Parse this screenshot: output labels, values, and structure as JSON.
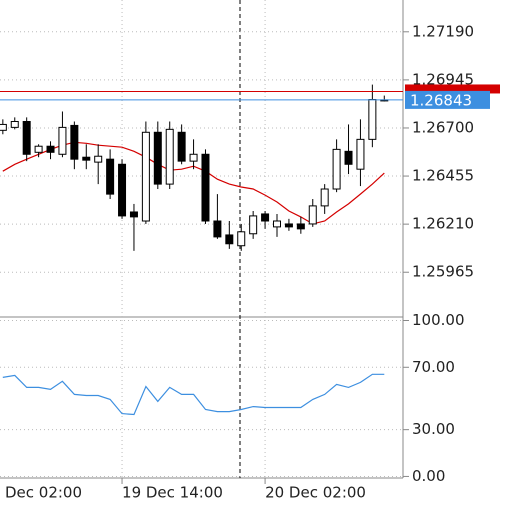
{
  "chart_data": [
    {
      "type": "candlestick",
      "categories": [
        "Dec 02:00",
        null,
        null,
        null,
        null,
        null,
        null,
        null,
        null,
        null,
        null,
        null,
        "19 Dec 14:00",
        null,
        null,
        null,
        null,
        null,
        null,
        null,
        null,
        null,
        null,
        null,
        "20 Dec 02:00",
        null,
        null,
        null,
        null,
        null,
        null,
        null,
        null,
        null,
        null
      ],
      "open": [
        null,
        null,
        1.26688,
        1.26703,
        1.26733,
        1.26576,
        1.26607,
        1.26566,
        1.26713,
        1.26551,
        1.26526,
        1.26541,
        1.26515,
        1.26272,
        1.26226,
        1.26678,
        1.26414,
        1.26678,
        1.26531,
        1.26566,
        1.26226,
        1.26155,
        1.261,
        1.26161,
        1.26262,
        1.26196,
        1.26211,
        1.26211,
        1.26211,
        1.26303,
        1.26389,
        1.26581,
        1.2649,
        1.26642,
        1.2684
      ],
      "high": [
        null,
        null,
        1.26744,
        1.26754,
        1.26754,
        1.26617,
        1.26632,
        1.26784,
        1.26733,
        1.26617,
        1.26617,
        1.26591,
        1.26541,
        1.26313,
        1.26733,
        1.26733,
        1.26733,
        1.26718,
        1.26642,
        1.26591,
        1.26363,
        1.26226,
        1.26211,
        1.26277,
        1.26277,
        1.26262,
        1.26237,
        1.26247,
        1.26338,
        1.26414,
        1.26642,
        1.26718,
        1.26744,
        1.26921,
        1.26865
      ],
      "low": [
        null,
        null,
        1.26668,
        1.26693,
        1.26531,
        1.26551,
        1.26541,
        1.26551,
        1.2649,
        1.2649,
        1.26414,
        1.26338,
        1.26237,
        1.26074,
        1.26211,
        1.26389,
        1.26389,
        1.26515,
        1.2649,
        1.26211,
        1.26135,
        1.26084,
        1.26074,
        1.26135,
        1.26186,
        1.26145,
        1.26176,
        1.26161,
        1.26196,
        1.26262,
        1.26373,
        1.26465,
        1.26404,
        1.26602,
        1.26835
      ],
      "close": [
        null,
        null,
        1.26718,
        1.26733,
        1.26566,
        1.26607,
        1.26576,
        1.26703,
        1.26541,
        1.26536,
        1.26556,
        1.26363,
        1.26252,
        1.26247,
        1.26678,
        1.26414,
        1.26693,
        1.26531,
        1.26566,
        1.26226,
        1.26145,
        1.2611,
        1.26171,
        1.26252,
        1.26226,
        1.26226,
        1.26196,
        1.26186,
        1.26303,
        1.26389,
        1.26591,
        1.26515,
        1.26642,
        1.26845,
        1.26843
      ],
      "up_color": "#ffffff",
      "down_color": "#000000",
      "ma": {
        "color": "#d40000",
        "values": [
          null,
          null,
          1.2648,
          1.26515,
          1.26541,
          1.26566,
          1.26591,
          1.26612,
          1.26627,
          1.26622,
          1.26612,
          1.26607,
          1.26602,
          1.26581,
          1.26551,
          1.26515,
          1.26485,
          1.2649,
          1.26505,
          1.2648,
          1.26439,
          1.26414,
          1.26399,
          1.26389,
          1.26358,
          1.26323,
          1.26277,
          1.26247,
          1.26211,
          1.26226,
          1.26272,
          1.26313,
          1.26363,
          1.26414,
          1.2647
        ]
      },
      "bid": 1.26843,
      "bid_color": "#3d8fe0",
      "ask": 1.26886,
      "ask_color": "#d40000",
      "ylim": [
        1.25742,
        1.27352
      ],
      "yticks": [
        {
          "value": 1.2719,
          "label": "1.27190"
        },
        1.26945,
        {
          "value": 1.267,
          "label": "1.26700"
        },
        1.26455,
        {
          "value": 1.2621,
          "label": "1.26210"
        },
        1.25965
      ],
      "grid": true
    },
    {
      "type": "line",
      "series": [
        {
          "color": "#3d8fe0",
          "values": [
            null,
            null,
            63.5,
            64.8,
            57.1,
            57.1,
            55.8,
            61.0,
            52.6,
            51.9,
            51.9,
            49.4,
            40.3,
            39.7,
            57.7,
            48.1,
            57.1,
            52.6,
            52.6,
            42.9,
            41.6,
            41.6,
            42.9,
            44.8,
            44.2,
            44.2,
            44.2,
            44.2,
            49.4,
            52.6,
            59.0,
            57.1,
            60.3,
            65.5,
            65.5
          ]
        }
      ],
      "ylim": [
        -1,
        101.6
      ],
      "yticks": [
        {
          "value": 100,
          "label": "100.00"
        },
        {
          "value": 70,
          "label": "70.00"
        },
        {
          "value": 30,
          "label": "30.00"
        },
        {
          "value": 0,
          "label": "0.00"
        }
      ],
      "grid": true
    }
  ]
}
